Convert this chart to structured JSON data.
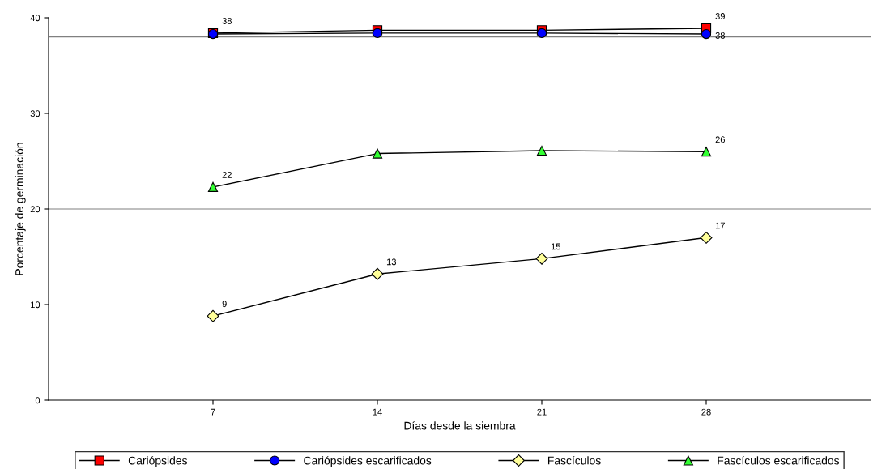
{
  "chart_data": {
    "type": "line",
    "xlabel": "Días desde la siembra",
    "ylabel": "Porcentaje de germinación",
    "x": [
      7,
      14,
      21,
      28
    ],
    "xlim": [
      0,
      35
    ],
    "xticks": [
      7,
      14,
      21,
      28
    ],
    "ylim": [
      0,
      40
    ],
    "yticks": [
      0,
      10,
      20,
      30,
      40
    ],
    "grid": false,
    "legend": "bottom",
    "line_style": "solid",
    "ref_lines": [
      {
        "axis": "y",
        "value": 20,
        "color": "#808080"
      },
      {
        "axis": "y",
        "value": 38,
        "color": "#808080"
      }
    ],
    "series": [
      {
        "name": "Cariópsides",
        "color": "#ff0000",
        "marker": "square",
        "values": [
          38.4,
          38.7,
          38.7,
          38.9
        ],
        "value_labels": [
          "38",
          null,
          null,
          "39"
        ]
      },
      {
        "name": "Cariópsides escarificados",
        "color": "#0000ff",
        "marker": "circle",
        "values": [
          38.3,
          38.4,
          38.4,
          38.3
        ],
        "value_labels": [
          null,
          null,
          null,
          "38"
        ]
      },
      {
        "name": "Fascículos",
        "color": "#ffff99",
        "marker": "diamond",
        "values": [
          8.8,
          13.2,
          14.8,
          17.0
        ],
        "value_labels": [
          "9",
          "13",
          "15",
          "17"
        ]
      },
      {
        "name": "Fascículos escarificados",
        "color": "#33ff33",
        "marker": "triangle",
        "values": [
          22.3,
          25.8,
          26.1,
          26.0
        ],
        "value_labels": [
          "22",
          null,
          null,
          "26"
        ]
      }
    ]
  }
}
